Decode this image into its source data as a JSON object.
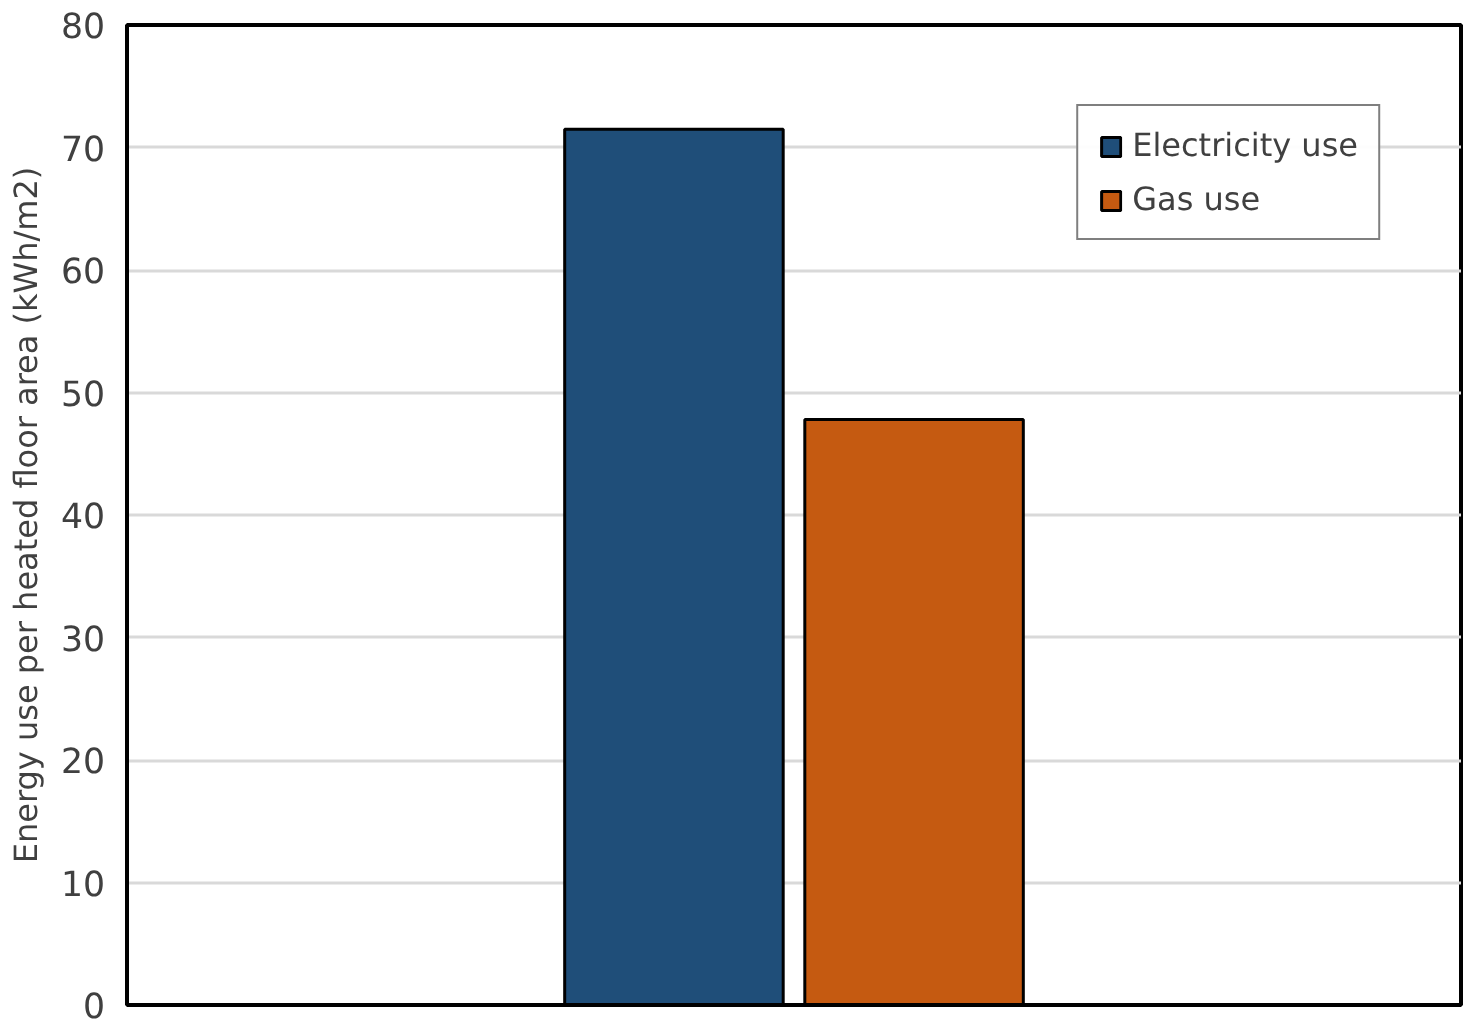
{
  "chart_data": {
    "type": "bar",
    "ylabel": "Energy use per heated floor area (kWh/m2)",
    "categories": [
      null
    ],
    "series": [
      {
        "name": "Electricity use",
        "color": "#1f4e79",
        "values": [
          71.5
        ]
      },
      {
        "name": "Gas use",
        "color": "#c55a11",
        "values": [
          47.8
        ]
      }
    ],
    "ylim": [
      0,
      80
    ],
    "yticks": [
      0,
      10,
      20,
      30,
      40,
      50,
      60,
      70,
      80
    ],
    "grid": "y",
    "legend": "top right",
    "tick_labels": "y"
  }
}
